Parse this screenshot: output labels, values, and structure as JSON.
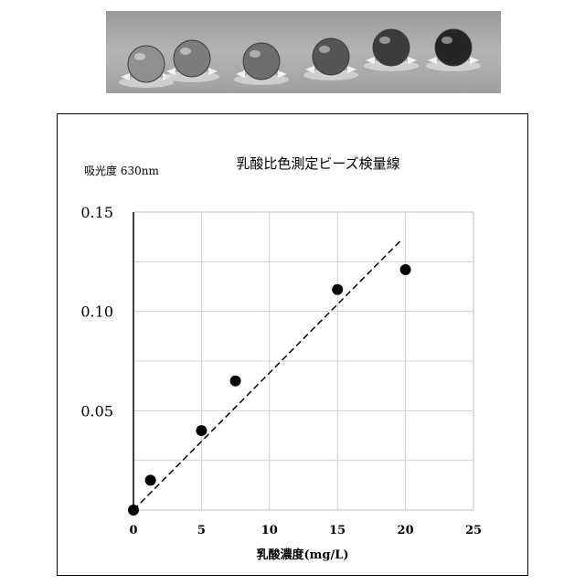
{
  "colors": {
    "marker": "#000000",
    "grid": "#d0d0d0",
    "axis": "#000000"
  },
  "photo": {
    "description_icon": "dye-bead-photo",
    "bead_tints": [
      "#8f8f8f",
      "#7d7d7d",
      "#6e6e6e",
      "#555555",
      "#3c3c3c",
      "#252525"
    ]
  },
  "chart_data": {
    "type": "scatter",
    "title": "乳酸比色測定ビーズ検量線",
    "ylabel": "吸光度 630nm",
    "xlabel": "乳酸濃度(mg/L)",
    "xlim": [
      0,
      25
    ],
    "ylim": [
      0,
      0.15
    ],
    "xticks": [
      0,
      5,
      10,
      15,
      20,
      25
    ],
    "xtick_labels": [
      "0",
      "5",
      "10",
      "15",
      "20",
      "25"
    ],
    "yticks": [
      0.05,
      0.1,
      0.15
    ],
    "ytick_labels": [
      "0.05",
      "0.10",
      "0.15"
    ],
    "grid": true,
    "series": [
      {
        "x": [
          0,
          1.25,
          5,
          7.5,
          15,
          20
        ],
        "y": [
          0.0,
          0.015,
          0.04,
          0.065,
          0.111,
          0.121
        ]
      }
    ],
    "trendline": {
      "style": "dashed",
      "x": [
        0,
        19.7
      ],
      "y": [
        0.0,
        0.136
      ]
    }
  }
}
